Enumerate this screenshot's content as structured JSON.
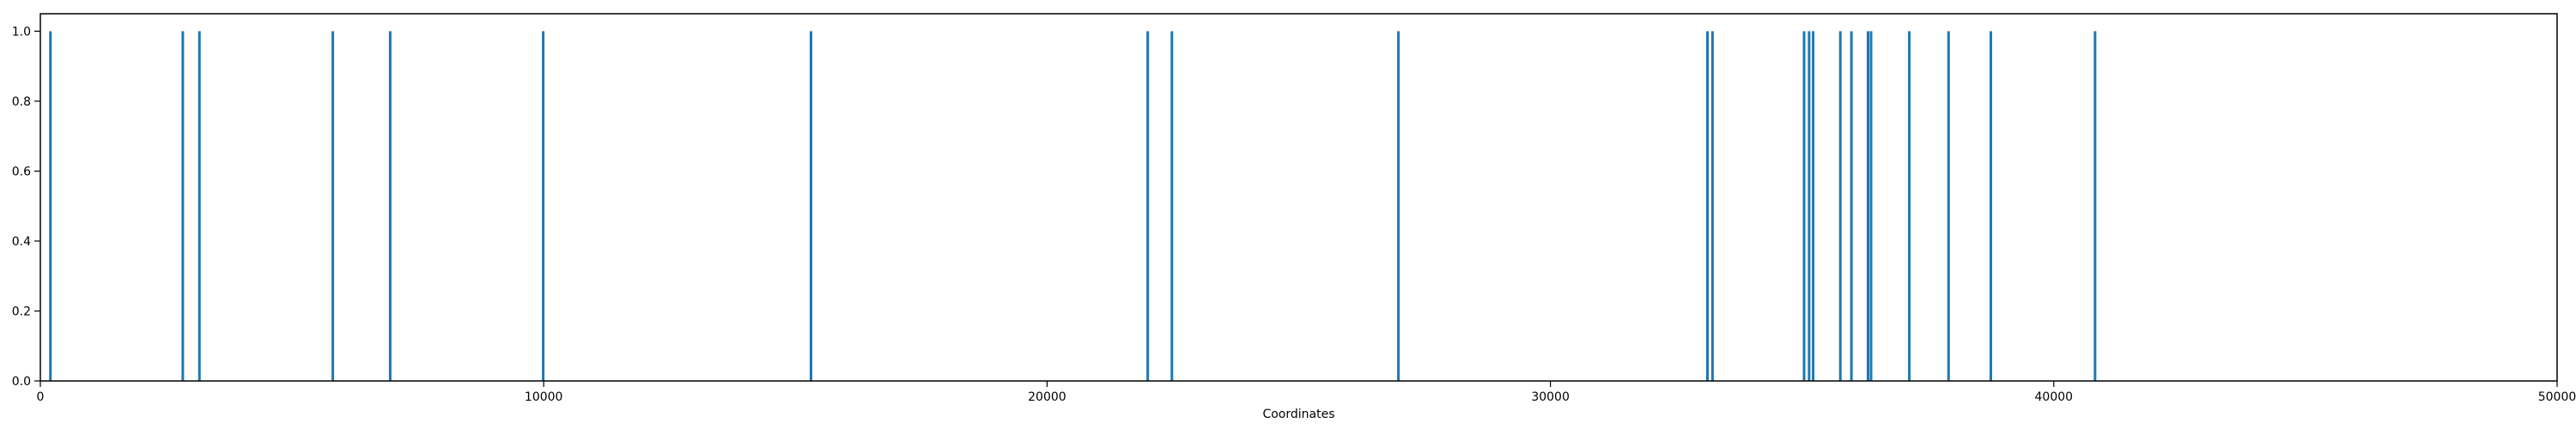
{
  "chart_data": {
    "type": "bar",
    "xlabel": "Coordinates",
    "ylabel": "",
    "title": "",
    "xlim": [
      0,
      50000
    ],
    "ylim": [
      0.0,
      1.05
    ],
    "x_ticks": [
      "0",
      "10000",
      "20000",
      "30000",
      "40000",
      "50000"
    ],
    "y_ticks": [
      "0.0",
      "0.2",
      "0.4",
      "0.6",
      "0.8",
      "1.0"
    ],
    "grid": false,
    "legend": "none",
    "bar_color": "#1f77b4",
    "series": [
      {
        "x": [
          200,
          2830,
          3160,
          5810,
          6950,
          9990,
          15310,
          22000,
          22480,
          26980,
          33120,
          33220,
          35040,
          35140,
          35220,
          35760,
          35980,
          36310,
          36370,
          37130,
          37910,
          38750,
          40820
        ],
        "values": [
          1,
          1,
          1,
          1,
          1,
          1,
          1,
          1,
          1,
          1,
          1,
          1,
          1,
          1,
          1,
          1,
          1,
          1,
          1,
          1,
          1,
          1,
          1
        ]
      }
    ]
  }
}
